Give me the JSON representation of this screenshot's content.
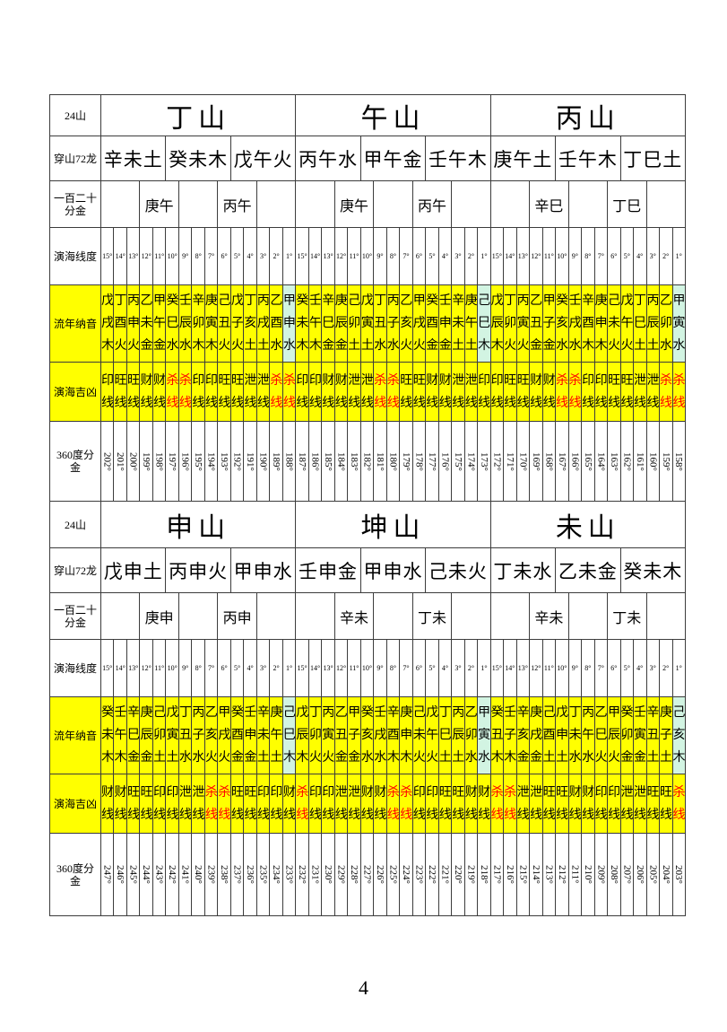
{
  "page": {
    "number": "4"
  },
  "colors": {
    "row_highlight": "#ffff00",
    "boundary_highlight": "#d2f4e2",
    "kill_line": "#ff0000"
  },
  "row_headers": {
    "mountains": "24山",
    "dragons": "穿山72龙",
    "gold120": "一百二十\n分金",
    "line_degrees": "演海线度",
    "nayin": "流年纳音",
    "jixiong": "演海吉凶",
    "deg360": "360度分\n金"
  },
  "line_degrees": [
    "15°",
    "14°",
    "13°",
    "12°",
    "11°",
    "10°",
    "9°",
    "8°",
    "7°",
    "6°",
    "5°",
    "4°",
    "3°",
    "2°",
    "1°"
  ],
  "tables": [
    {
      "mountains": [
        "丁山",
        "午山",
        "丙山"
      ],
      "dragons": [
        "辛未土",
        "癸未木",
        "戊午火",
        "丙午水",
        "甲午金",
        "壬午木",
        "庚午土",
        "壬午木",
        "丁巳土"
      ],
      "gold120": [
        "",
        "庚午",
        "",
        "丙午",
        "",
        "",
        "庚午",
        "",
        "丙午",
        "",
        "",
        "辛巳",
        "",
        "丁巳",
        ""
      ],
      "nayin": [
        "戊戌木",
        "丁酉火",
        "丙申火",
        "乙未金",
        "甲午金",
        "癸巳水",
        "壬辰水",
        "辛卯木",
        "庚寅木",
        "己丑火",
        "戊子火",
        "丁亥土",
        "丙戌土",
        "乙酉水",
        "甲申水",
        "癸未木",
        "壬午木",
        "辛巳金",
        "庚辰金",
        "己卯土",
        "戊寅土",
        "丁丑水",
        "丙子水",
        "乙亥火",
        "甲戌火",
        "癸酉金",
        "壬申金",
        "辛未土",
        "庚午土",
        "己巳木",
        "戊辰木",
        "丁卯火",
        "丙寅火",
        "乙丑金",
        "甲子金",
        "癸亥水",
        "壬戌水",
        "辛酉木",
        "庚申木",
        "己未火",
        "戊午火",
        "丁巳土",
        "丙辰土",
        "乙卯水",
        "甲寅水"
      ],
      "nayin_cyan_cols": [
        15,
        30,
        45
      ],
      "jixiong": [
        "印线",
        "旺线",
        "旺线",
        "财线",
        "财线",
        "杀线",
        "杀线",
        "印线",
        "印线",
        "旺线",
        "旺线",
        "泄线",
        "泄线",
        "杀线",
        "杀线",
        "印线",
        "印线",
        "财线",
        "财线",
        "泄线",
        "泄线",
        "杀线",
        "杀线",
        "旺线",
        "旺线",
        "财线",
        "财线",
        "泄线",
        "泄线",
        "印线",
        "印线",
        "旺线",
        "旺线",
        "财线",
        "财线",
        "杀线",
        "杀线",
        "印线",
        "印线",
        "旺线",
        "旺线",
        "泄线",
        "泄线",
        "杀线",
        "杀线"
      ],
      "jixiong_red_cols": [
        6,
        7,
        14,
        15,
        22,
        23,
        36,
        37,
        44,
        45
      ],
      "deg360": [
        "202°",
        "201°",
        "200°",
        "199°",
        "198°",
        "197°",
        "196°",
        "195°",
        "194°",
        "193°",
        "192°",
        "191°",
        "190°",
        "189°",
        "188°",
        "187°",
        "186°",
        "185°",
        "184°",
        "183°",
        "182°",
        "181°",
        "180°",
        "179°",
        "178°",
        "177°",
        "176°",
        "175°",
        "174°",
        "173°",
        "172°",
        "171°",
        "170°",
        "169°",
        "168°",
        "167°",
        "166°",
        "165°",
        "164°",
        "163°",
        "162°",
        "161°",
        "160°",
        "159°",
        "158°"
      ]
    },
    {
      "mountains": [
        "申山",
        "坤山",
        "未山"
      ],
      "dragons": [
        "戊申土",
        "丙申火",
        "甲申水",
        "壬申金",
        "甲申水",
        "己未火",
        "丁未水",
        "乙未金",
        "癸未木"
      ],
      "gold120": [
        "",
        "庚申",
        "",
        "丙申",
        "",
        "",
        "辛未",
        "",
        "丁未",
        "",
        "",
        "辛未",
        "",
        "丁未",
        ""
      ],
      "nayin": [
        "癸未木",
        "壬午木",
        "辛巳金",
        "庚辰金",
        "己卯土",
        "戊寅土",
        "丁丑水",
        "丙子水",
        "乙亥火",
        "甲戌火",
        "癸酉金",
        "壬申金",
        "辛未土",
        "庚午土",
        "己巳木",
        "戊辰木",
        "丁卯火",
        "丙寅火",
        "乙丑金",
        "甲子金",
        "癸亥水",
        "壬戌水",
        "辛酉木",
        "庚申木",
        "己未火",
        "戊午火",
        "丁巳土",
        "丙辰土",
        "乙卯水",
        "甲寅水",
        "癸丑木",
        "壬子木",
        "辛亥金",
        "庚戌金",
        "己酉土",
        "戊申土",
        "丁未水",
        "丙午水",
        "乙巳火",
        "甲辰火",
        "癸卯金",
        "壬寅金",
        "辛丑土",
        "庚子土",
        "己亥木"
      ],
      "nayin_cyan_cols": [
        15,
        30,
        45
      ],
      "jixiong": [
        "财线",
        "财线",
        "旺线",
        "旺线",
        "印线",
        "印线",
        "泄线",
        "泄线",
        "杀线",
        "杀线",
        "旺线",
        "旺线",
        "印线",
        "印线",
        "财线",
        "杀线",
        "印线",
        "印线",
        "泄线",
        "泄线",
        "财线",
        "财线",
        "杀线",
        "杀线",
        "印线",
        "印线",
        "旺线",
        "旺线",
        "财线",
        "财线",
        "杀线",
        "杀线",
        "泄线",
        "泄线",
        "旺线",
        "旺线",
        "财线",
        "财线",
        "印线",
        "印线",
        "泄线",
        "泄线",
        "旺线",
        "旺线",
        "杀线"
      ],
      "jixiong_red_cols": [
        9,
        10,
        16,
        23,
        24,
        31,
        32,
        45
      ],
      "deg360": [
        "247°",
        "246°",
        "245°",
        "244°",
        "243°",
        "242°",
        "241°",
        "240°",
        "239°",
        "238°",
        "237°",
        "236°",
        "235°",
        "234°",
        "233°",
        "232°",
        "231°",
        "230°",
        "229°",
        "228°",
        "227°",
        "226°",
        "225°",
        "224°",
        "223°",
        "222°",
        "221°",
        "220°",
        "219°",
        "218°",
        "217°",
        "216°",
        "215°",
        "214°",
        "213°",
        "212°",
        "211°",
        "210°",
        "209°",
        "208°",
        "207°",
        "206°",
        "205°",
        "204°",
        "203°"
      ]
    }
  ]
}
